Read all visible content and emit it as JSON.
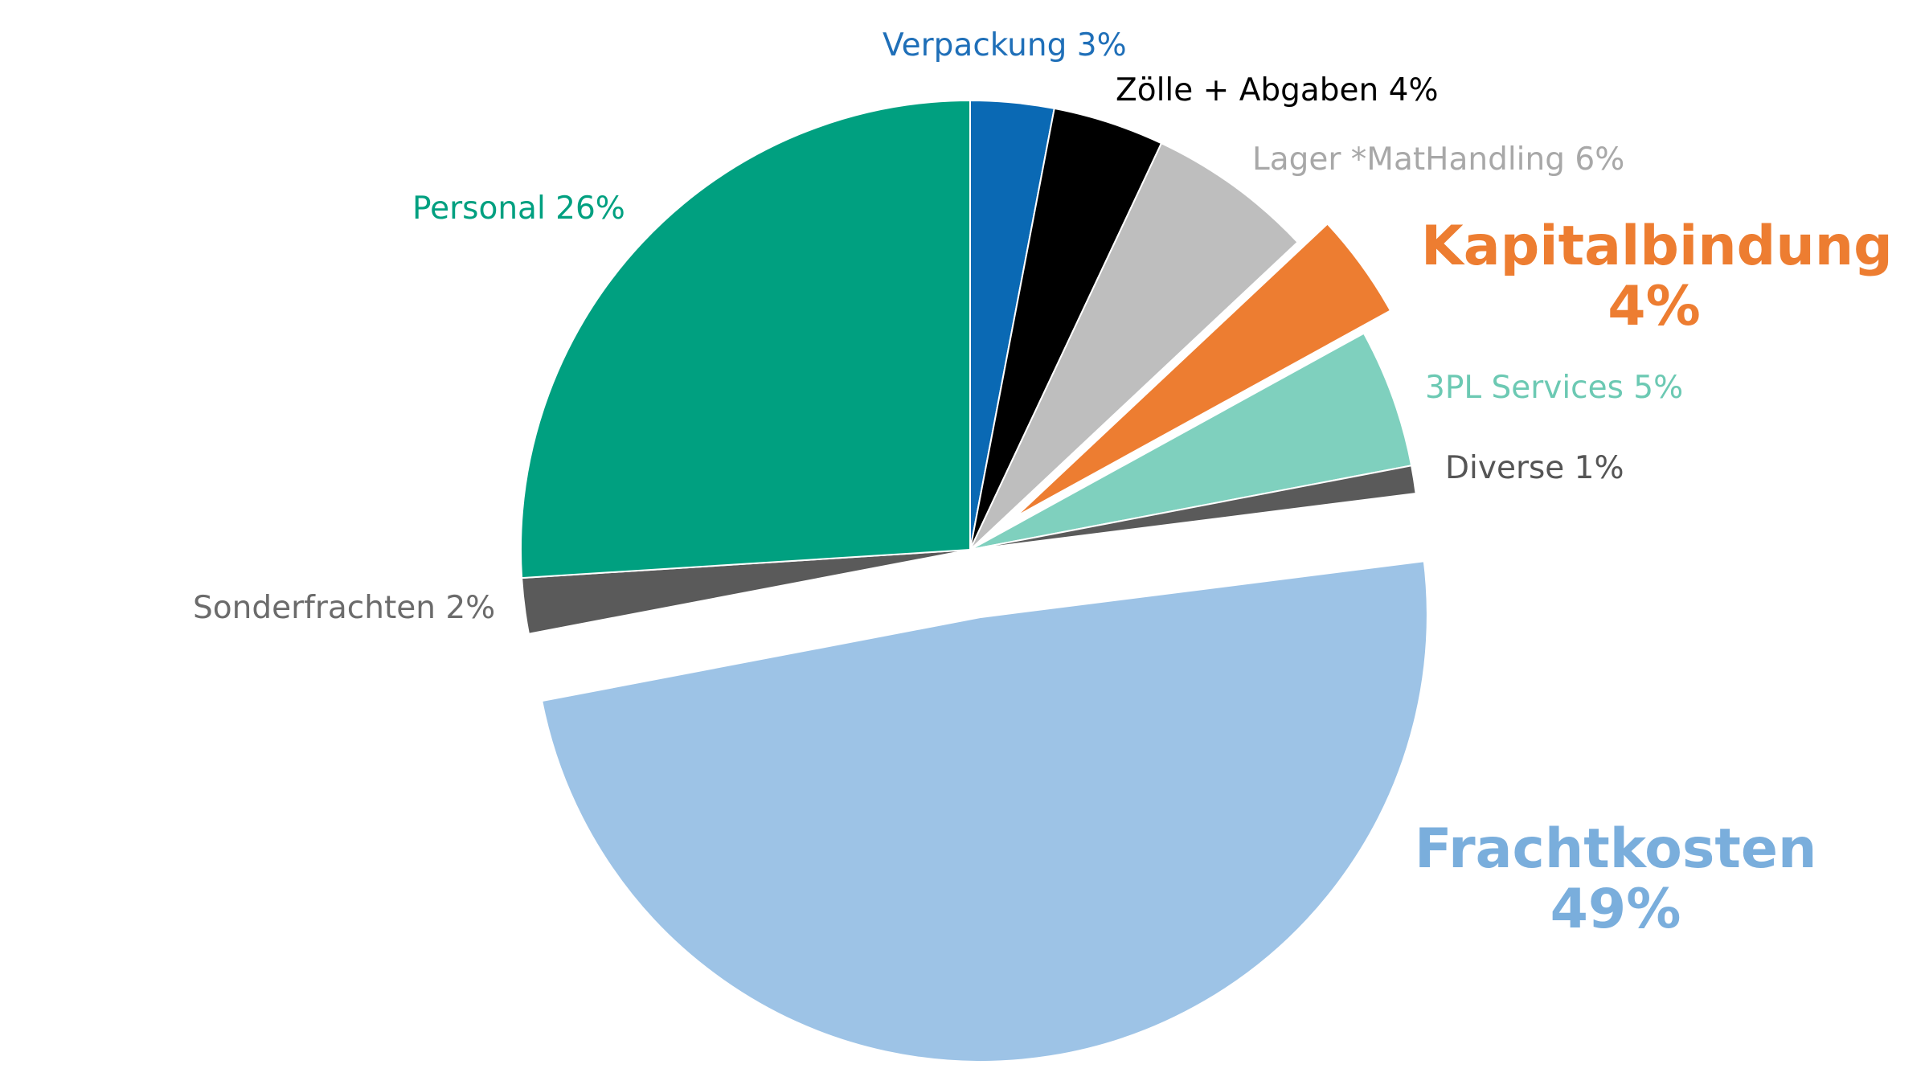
{
  "chart_data": {
    "type": "pie",
    "title": "",
    "start_angle_deg": 0,
    "direction": "clockwise",
    "slices": [
      {
        "label": "Verpackung 3%",
        "value": 3,
        "color": "#0a69b4",
        "label_color": "#1f6fb8"
      },
      {
        "label": "Zölle + Abgaben 4%",
        "value": 4,
        "color": "#000000",
        "label_color": "#000000"
      },
      {
        "label": "Lager *MatHandling 6%",
        "value": 6,
        "color": "#bebebe",
        "label_color": "#a8a8a8"
      },
      {
        "label": "Kapitalbindung",
        "label_line2": "4%",
        "value": 4,
        "color": "#ed7d31",
        "label_color": "#ed7d31",
        "exploded": true,
        "emphasized": true
      },
      {
        "label": "3PL Services 5%",
        "value": 5,
        "color": "#7fd0be",
        "label_color": "#6cc9b3"
      },
      {
        "label": "Diverse 1%",
        "value": 1,
        "color": "#5a5a5a",
        "label_color": "#555555"
      },
      {
        "label": "Frachtkosten",
        "label_line2": "49%",
        "value": 49,
        "color": "#9dc3e6",
        "label_color": "#7aaedc",
        "exploded": true,
        "emphasized": true
      },
      {
        "label": "Sonderfrachten 2%",
        "value": 2,
        "color": "#5a5a5a",
        "label_color": "#6b6b6b"
      },
      {
        "label": "Personal 26%",
        "value": 26,
        "color": "#00a080",
        "label_color": "#00a080"
      }
    ]
  }
}
